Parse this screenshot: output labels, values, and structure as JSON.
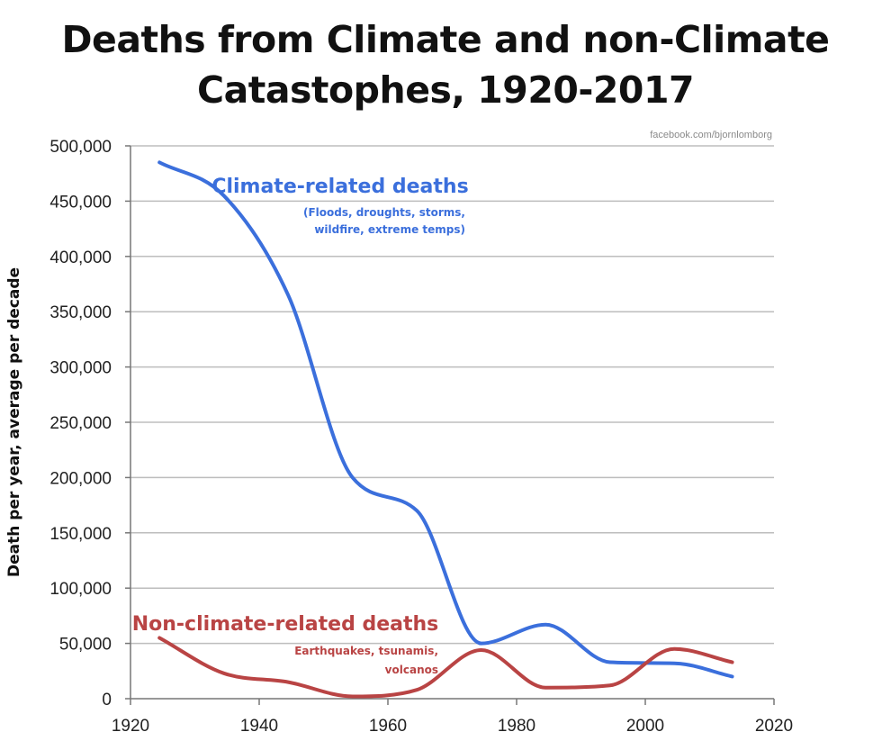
{
  "chart_data": {
    "type": "line",
    "title": "Deaths from Climate and non-Climate Catastophes, 1920-2017",
    "title_lines": [
      "Deaths from Climate and non-Climate",
      "Catastophes, 1920-2017"
    ],
    "credit": "facebook.com/bjornlomborg",
    "ylabel": "Death per year, average per decade",
    "xlim": [
      1920,
      2020
    ],
    "ylim": [
      0,
      500000
    ],
    "x_ticks": [
      1920,
      1940,
      1960,
      1980,
      2000,
      2020
    ],
    "y_ticks": [
      0,
      50000,
      100000,
      150000,
      200000,
      250000,
      300000,
      350000,
      400000,
      450000,
      500000
    ],
    "y_tick_labels": [
      "0",
      "50,000",
      "100,000",
      "150,000",
      "200,000",
      "250,000",
      "300,000",
      "350,000",
      "400,000",
      "450,000",
      "500,000"
    ],
    "x_tick_labels": [
      "1920",
      "1940",
      "1960",
      "1980",
      "2000",
      "2020"
    ],
    "grid": true,
    "series": [
      {
        "name": "Climate-related deaths",
        "note_lines": [
          "(Floods, droughts, storms,",
          "wildfire, extreme temps)"
        ],
        "color": "#3b6fdc",
        "x": [
          1924.5,
          1934.5,
          1944.5,
          1954.5,
          1964.5,
          1974.5,
          1984.5,
          1994.5,
          2004.5,
          2013.5
        ],
        "values": [
          485000,
          455000,
          365000,
          200000,
          170000,
          50000,
          67000,
          33000,
          32000,
          20000
        ]
      },
      {
        "name": "Non-climate-related deaths",
        "note_lines": [
          "Earthquakes, tsunamis,",
          "volcanos"
        ],
        "color": "#b94444",
        "x": [
          1924.5,
          1934.5,
          1944.5,
          1954.5,
          1964.5,
          1974.5,
          1984.5,
          1994.5,
          2004.5,
          2013.5
        ],
        "values": [
          55000,
          23000,
          15000,
          2000,
          8000,
          44000,
          10000,
          12000,
          45000,
          33000
        ]
      }
    ]
  }
}
